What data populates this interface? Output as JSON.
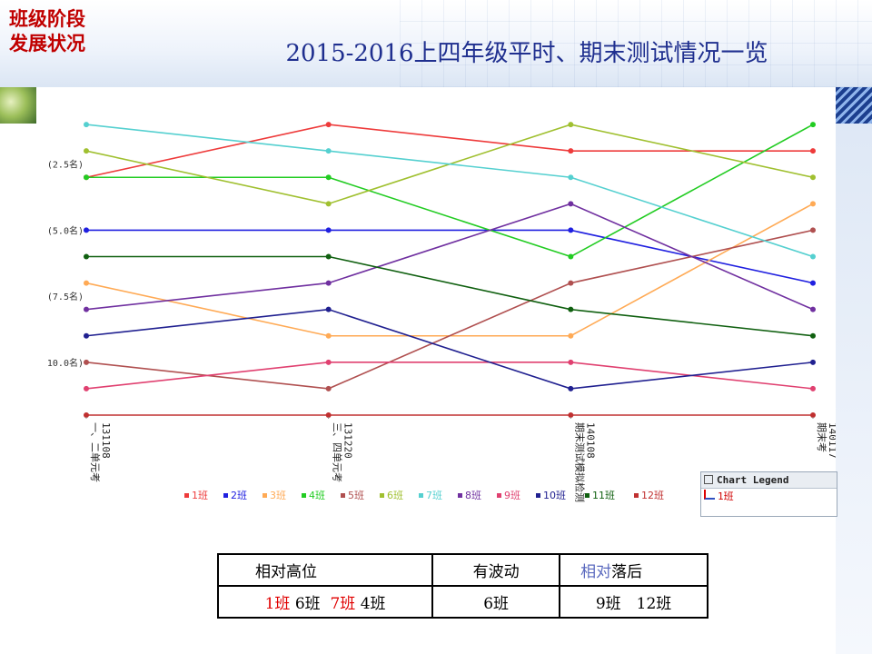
{
  "section_label_lines": [
    "班级阶段",
    "发展状况"
  ],
  "title": "2015-2016上四年级平时、期末测试情况一览",
  "chart_data": {
    "type": "line",
    "title": "",
    "xlabel": "",
    "ylabel": "",
    "y_reversed": true,
    "ylim": [
      0,
      12
    ],
    "y_ticks": [
      2.5,
      5.0,
      7.5,
      10.0
    ],
    "y_tick_labels": [
      "(2.5名)",
      "(5.0名)",
      "(7.5名)",
      "10.0名)"
    ],
    "categories": [
      "131108\n一、二单元考",
      "131220\n三、四单元考",
      "140108\n期末测试模拟检测",
      "140117\n期末考"
    ],
    "legend_position": "bottom",
    "grid": false,
    "series": [
      {
        "name": "1班",
        "color": "#ee3b3b",
        "values": [
          3,
          1,
          2,
          2
        ]
      },
      {
        "name": "2班",
        "color": "#2020e0",
        "values": [
          5,
          5,
          5,
          7
        ]
      },
      {
        "name": "3班",
        "color": "#ffaa55",
        "values": [
          7,
          9,
          9,
          4
        ]
      },
      {
        "name": "4班",
        "color": "#22cc22",
        "values": [
          3,
          3,
          6,
          1
        ]
      },
      {
        "name": "5班",
        "color": "#b05050",
        "values": [
          10,
          11,
          7,
          5
        ]
      },
      {
        "name": "6班",
        "color": "#a0c030",
        "values": [
          2,
          4,
          1,
          3
        ]
      },
      {
        "name": "7班",
        "color": "#55d0d0",
        "values": [
          1,
          2,
          3,
          6
        ]
      },
      {
        "name": "8班",
        "color": "#7030a0",
        "values": [
          8,
          7,
          4,
          8
        ]
      },
      {
        "name": "9班",
        "color": "#e04070",
        "values": [
          11,
          10,
          10,
          11
        ]
      },
      {
        "name": "10班",
        "color": "#202090",
        "values": [
          9,
          8,
          11,
          10
        ]
      },
      {
        "name": "11班",
        "color": "#106010",
        "values": [
          6,
          6,
          8,
          9
        ]
      },
      {
        "name": "12班",
        "color": "#c03030",
        "values": [
          12,
          12,
          12,
          12
        ]
      }
    ]
  },
  "legend_window": {
    "header": "Chart Legend",
    "first_entry": "1班"
  },
  "table": {
    "headers": {
      "high": "相对高位",
      "fluctuate": "有波动",
      "behind_prefix": "相对",
      "behind_suffix": "落后"
    },
    "values": {
      "high": [
        {
          "text": "1班",
          "highlight": true
        },
        {
          "text": "6班",
          "highlight": false
        },
        {
          "text": "7班",
          "highlight": true
        },
        {
          "text": "4班",
          "highlight": false
        }
      ],
      "fluctuate": "6班",
      "behind": "9班　12班"
    }
  }
}
